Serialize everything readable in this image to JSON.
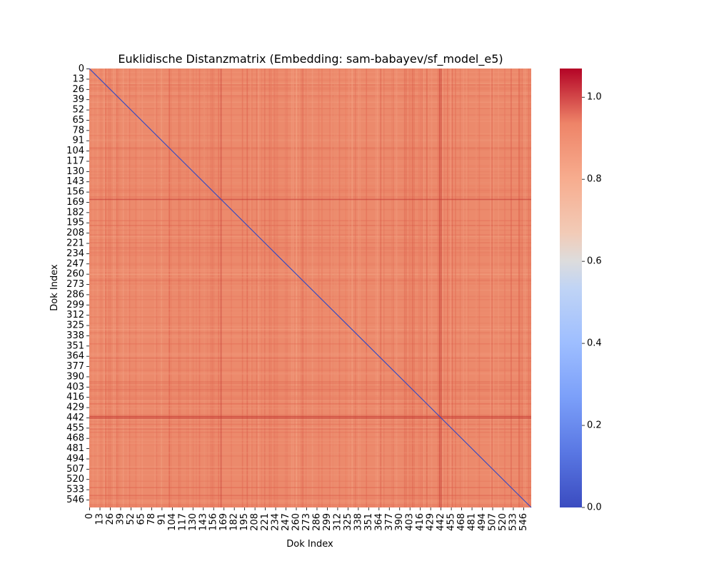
{
  "chart_data": {
    "type": "heatmap",
    "title": "Euklidische Distanzmatrix (Embedding: sam-babayev/sf_model_e5)",
    "xlabel": "Dok Index",
    "ylabel": "Dok Index",
    "n": 556,
    "x_ticks": [
      0,
      13,
      26,
      39,
      52,
      65,
      78,
      91,
      104,
      117,
      130,
      143,
      156,
      169,
      182,
      195,
      208,
      221,
      234,
      247,
      260,
      273,
      286,
      299,
      312,
      325,
      338,
      351,
      364,
      377,
      390,
      403,
      416,
      429,
      442,
      455,
      468,
      481,
      494,
      507,
      520,
      533,
      546
    ],
    "y_ticks": [
      0,
      13,
      26,
      39,
      52,
      65,
      78,
      91,
      104,
      117,
      130,
      143,
      156,
      169,
      182,
      195,
      208,
      221,
      234,
      247,
      260,
      273,
      286,
      299,
      312,
      325,
      338,
      351,
      364,
      377,
      390,
      403,
      416,
      429,
      442,
      455,
      468,
      481,
      494,
      507,
      520,
      533,
      546
    ],
    "colorbar": {
      "colormap": "coolwarm",
      "vmin": 0.0,
      "vmax": 1.07,
      "ticks": [
        "0.0",
        "0.2",
        "0.4",
        "0.6",
        "0.8",
        "1.0"
      ]
    },
    "diagonal_value": 0.0,
    "typical_offdiagonal_value": 0.85,
    "grid": false,
    "legend": "colorbar-right"
  }
}
